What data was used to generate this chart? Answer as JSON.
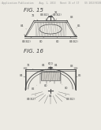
{
  "background_color": "#eceae3",
  "header_text": "Patent Application Publication    Aug. 1, 2013   Sheet 15 of 17    US 2013/0193840 A1",
  "header_fontsize": 2.2,
  "fig15_label": "FIG. 15",
  "fig16_label": "FIG. 16",
  "label_fontsize": 5.0,
  "line_color": "#444444",
  "line_width": 0.55,
  "ref_fontsize": 2.5,
  "page_bg": "#eceae3"
}
